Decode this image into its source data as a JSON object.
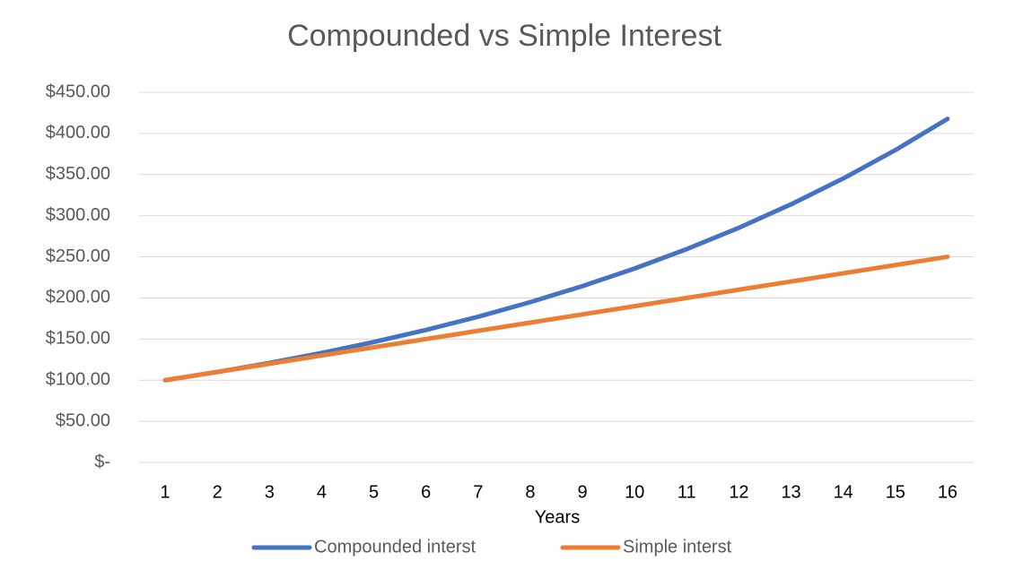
{
  "chart_data": {
    "type": "line",
    "title": "Compounded vs Simple Interest",
    "x_label": "Years",
    "categories": [
      "1",
      "2",
      "3",
      "4",
      "5",
      "6",
      "7",
      "8",
      "9",
      "10",
      "11",
      "12",
      "13",
      "14",
      "15",
      "16"
    ],
    "series": [
      {
        "name": "Compounded interst",
        "color": "#4472c4",
        "values": [
          100,
          110,
          121,
          133.1,
          146.41,
          161.05,
          177.16,
          194.87,
          214.36,
          235.79,
          259.37,
          285.31,
          313.84,
          345.23,
          379.75,
          417.72
        ]
      },
      {
        "name": "Simple interst",
        "color": "#ed7d31",
        "values": [
          100,
          110,
          120,
          130,
          140,
          150,
          160,
          170,
          180,
          190,
          200,
          210,
          220,
          230,
          240,
          250
        ]
      }
    ],
    "ylim": [
      0,
      450
    ],
    "yticks": [
      {
        "value": 0,
        "label": "$-"
      },
      {
        "value": 50,
        "label": "$50.00"
      },
      {
        "value": 100,
        "label": "$100.00"
      },
      {
        "value": 150,
        "label": "$150.00"
      },
      {
        "value": 200,
        "label": "$200.00"
      },
      {
        "value": 250,
        "label": "$250.00"
      },
      {
        "value": 300,
        "label": "$300.00"
      },
      {
        "value": 350,
        "label": "$350.00"
      },
      {
        "value": 400,
        "label": "$400.00"
      },
      {
        "value": 450,
        "label": "$450.00"
      }
    ],
    "grid": true,
    "legend": "bottom"
  }
}
